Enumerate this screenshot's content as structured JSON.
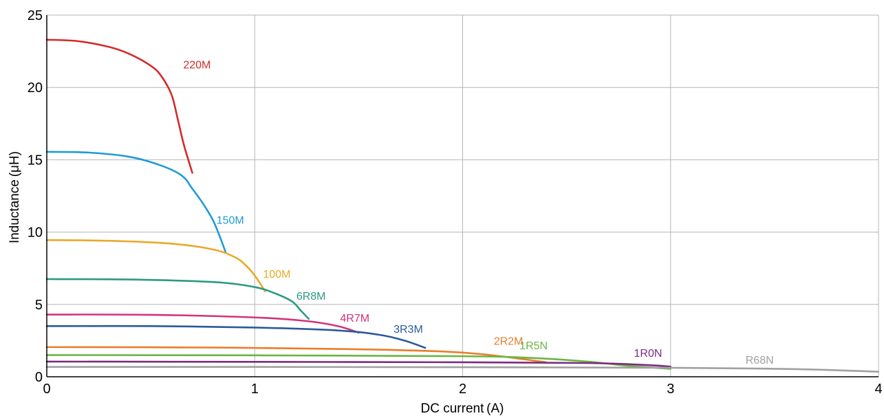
{
  "chart_data": {
    "type": "line",
    "xlabel": "DC current (A)",
    "ylabel": "Inductance (μH)",
    "xlim": [
      0,
      4
    ],
    "ylim": [
      0,
      25
    ],
    "xticks": [
      0,
      1,
      2,
      3,
      4
    ],
    "yticks": [
      0,
      5,
      10,
      15,
      20,
      25
    ],
    "grid": true,
    "legend": "inline labels",
    "series": [
      {
        "name": "220M",
        "color": "#d42a2a",
        "x": [
          0,
          0.15,
          0.3,
          0.4,
          0.5,
          0.55,
          0.6,
          0.63,
          0.66,
          0.7
        ],
        "y": [
          23.3,
          23.2,
          22.8,
          22.3,
          21.5,
          20.8,
          19.5,
          17.8,
          16.0,
          14.1
        ]
      },
      {
        "name": "150M",
        "color": "#1e9bd7",
        "x": [
          0,
          0.2,
          0.4,
          0.55,
          0.65,
          0.7,
          0.75,
          0.8,
          0.84,
          0.86
        ],
        "y": [
          15.55,
          15.5,
          15.2,
          14.6,
          13.9,
          13.0,
          12.0,
          10.8,
          9.4,
          8.6
        ]
      },
      {
        "name": "100M",
        "color": "#e9a92a",
        "x": [
          0,
          0.3,
          0.6,
          0.8,
          0.9,
          0.95,
          1.0,
          1.05
        ],
        "y": [
          9.45,
          9.4,
          9.2,
          8.8,
          8.3,
          7.8,
          7.0,
          5.9
        ]
      },
      {
        "name": "6R8M",
        "color": "#2a9a82",
        "x": [
          0,
          0.4,
          0.8,
          1.0,
          1.1,
          1.18,
          1.22,
          1.26
        ],
        "y": [
          6.75,
          6.72,
          6.55,
          6.2,
          5.75,
          5.2,
          4.6,
          4.0
        ]
      },
      {
        "name": "4R7M",
        "color": "#d4327a",
        "x": [
          0,
          0.5,
          1.0,
          1.25,
          1.4,
          1.5
        ],
        "y": [
          4.3,
          4.28,
          4.1,
          3.85,
          3.5,
          3.05
        ]
      },
      {
        "name": "3R3M",
        "color": "#2a5a9a",
        "x": [
          0,
          0.5,
          1.0,
          1.4,
          1.6,
          1.72,
          1.82
        ],
        "y": [
          3.5,
          3.5,
          3.4,
          3.2,
          2.9,
          2.5,
          2.0
        ]
      },
      {
        "name": "2R2M",
        "color": "#e97d2a",
        "x": [
          0,
          0.8,
          1.5,
          1.9,
          2.1,
          2.3,
          2.4
        ],
        "y": [
          2.05,
          2.02,
          1.9,
          1.75,
          1.55,
          1.2,
          1.0
        ]
      },
      {
        "name": "1R5N",
        "color": "#6ab542",
        "x": [
          0,
          1.0,
          2.0,
          2.3,
          2.6,
          2.8,
          3.0
        ],
        "y": [
          1.5,
          1.48,
          1.42,
          1.32,
          1.05,
          0.75,
          0.55
        ]
      },
      {
        "name": "1R0N",
        "color": "#7a2a82",
        "x": [
          0,
          1.0,
          2.0,
          2.6,
          2.9,
          3.0
        ],
        "y": [
          1.05,
          1.03,
          1.0,
          0.95,
          0.8,
          0.7
        ]
      },
      {
        "name": "R68N",
        "color": "#a0a0a0",
        "x": [
          0,
          1.0,
          2.0,
          3.0,
          3.5,
          3.8,
          4.0
        ],
        "y": [
          0.68,
          0.68,
          0.66,
          0.62,
          0.55,
          0.45,
          0.35
        ]
      }
    ]
  }
}
